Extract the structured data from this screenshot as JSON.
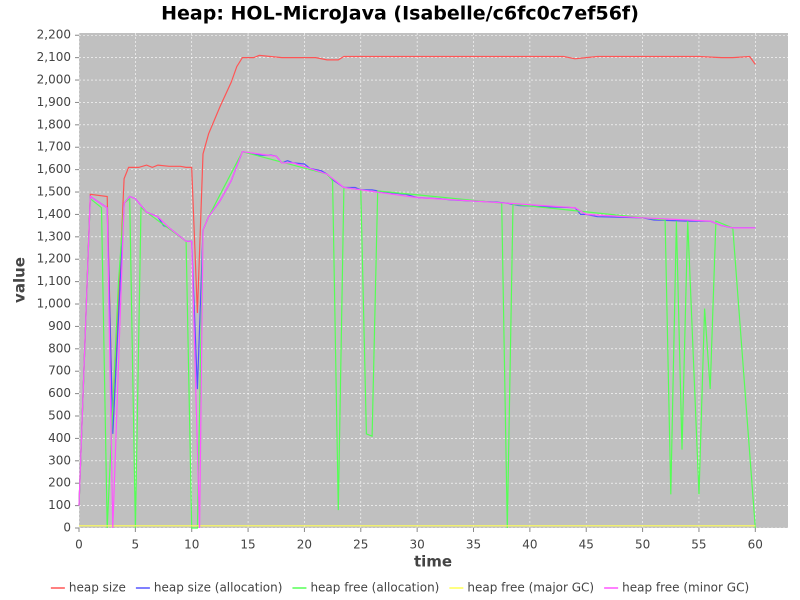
{
  "chart_data": {
    "type": "line",
    "title": "Heap: HOL-MicroJava (Isabelle/c6fc0c7ef56f)",
    "x_label": "time",
    "y_label": "value",
    "xlim": [
      0,
      62.9
    ],
    "ylim": [
      0,
      2210
    ],
    "xticks": [
      0,
      5,
      10,
      15,
      20,
      25,
      30,
      35,
      40,
      45,
      50,
      55,
      60
    ],
    "yticks": [
      0,
      100,
      200,
      300,
      400,
      500,
      600,
      700,
      800,
      900,
      {
        "value": 1000,
        "label": "1,000"
      },
      {
        "value": 1100,
        "label": "1,100"
      },
      {
        "value": 1200,
        "label": "1,200"
      },
      {
        "value": 1300,
        "label": "1,300"
      },
      {
        "value": 1400,
        "label": "1,400"
      },
      {
        "value": 1500,
        "label": "1,500"
      },
      {
        "value": 1600,
        "label": "1,600"
      },
      {
        "value": 1700,
        "label": "1,700"
      },
      {
        "value": 1800,
        "label": "1,800"
      },
      {
        "value": 1900,
        "label": "1,900"
      },
      {
        "value": 2000,
        "label": "2,000"
      },
      {
        "value": 2100,
        "label": "2,100"
      },
      {
        "value": 2200,
        "label": "2,200"
      }
    ],
    "grid": true,
    "legend": "bottom",
    "series": [
      {
        "name": "heap size",
        "color": "#ff5555",
        "x": [
          0,
          1,
          2.5,
          3,
          4,
          4.4,
          5.3,
          6,
          6.5,
          7,
          8,
          9,
          9.5,
          10,
          10.5,
          11,
          11.5,
          12.5,
          13.5,
          14,
          14.5,
          15.5,
          16,
          17,
          18,
          19,
          20,
          21,
          22,
          23,
          23.5,
          25,
          30,
          35,
          40,
          43,
          44,
          45,
          46,
          50,
          55,
          57,
          58,
          59.5,
          60
        ],
        "values": [
          100,
          1490,
          1480,
          430,
          1560,
          1610,
          1610,
          1620,
          1610,
          1620,
          1615,
          1615,
          1610,
          1610,
          960,
          1670,
          1760,
          1880,
          1990,
          2060,
          2100,
          2100,
          2110,
          2105,
          2100,
          2100,
          2100,
          2100,
          2090,
          2090,
          2105,
          2105,
          2105,
          2105,
          2105,
          2105,
          2095,
          2100,
          2105,
          2105,
          2105,
          2100,
          2100,
          2105,
          2070
        ]
      },
      {
        "name": "heap size (allocation)",
        "color": "#5555ff",
        "x": [
          0,
          1,
          2.5,
          3,
          4,
          4.5,
          5,
          6,
          6.5,
          7,
          7.5,
          8,
          9,
          9.5,
          10,
          10.5,
          11,
          11.5,
          12.5,
          13.5,
          14.5,
          15,
          16,
          17,
          17.5,
          18,
          18.5,
          19,
          20,
          20.5,
          21.5,
          22,
          22.5,
          23.5,
          24,
          24.5,
          25,
          26,
          27,
          28,
          29,
          30,
          32,
          33,
          35,
          37,
          38,
          39,
          41,
          44,
          44.5,
          45,
          46,
          50,
          51,
          54,
          56,
          57,
          58,
          60
        ],
        "values": [
          100,
          1480,
          1430,
          420,
          1450,
          1480,
          1470,
          1410,
          1400,
          1390,
          1350,
          1340,
          1300,
          1280,
          1280,
          620,
          1330,
          1390,
          1460,
          1550,
          1680,
          1675,
          1665,
          1665,
          1660,
          1630,
          1640,
          1630,
          1625,
          1605,
          1595,
          1580,
          1555,
          1520,
          1520,
          1520,
          1510,
          1510,
          1500,
          1495,
          1490,
          1475,
          1470,
          1465,
          1460,
          1455,
          1450,
          1440,
          1435,
          1430,
          1400,
          1400,
          1390,
          1385,
          1375,
          1370,
          1370,
          1350,
          1340,
          1340
        ]
      },
      {
        "name": "heap free (allocation)",
        "color": "#55ff55",
        "x": [
          0,
          1,
          2,
          2.5,
          3.5,
          4,
          4.5,
          5,
          5.5,
          6,
          9.5,
          10,
          10.5,
          11,
          11.5,
          14.5,
          22,
          22.5,
          23,
          23.5,
          25,
          25.5,
          26,
          26.5,
          37.5,
          38,
          38.5,
          52,
          52.5,
          53,
          53.5,
          54,
          55,
          55.5,
          56,
          56.5,
          58,
          60
        ],
        "values": [
          100,
          1470,
          1430,
          0,
          1100,
          1450,
          1470,
          0,
          1430,
          1410,
          1280,
          0,
          0,
          1330,
          1390,
          1680,
          1580,
          1550,
          80,
          1520,
          1510,
          420,
          410,
          1505,
          1450,
          0,
          1445,
          1375,
          150,
          1370,
          350,
          1370,
          150,
          980,
          620,
          1370,
          1340,
          0
        ]
      },
      {
        "name": "heap free (major GC)",
        "color": "#ffff55",
        "x": [
          0,
          60
        ],
        "values": [
          10,
          10
        ]
      },
      {
        "name": "heap free (minor GC)",
        "color": "#ff55ff",
        "x": [
          0,
          1,
          2.5,
          3,
          4,
          4.5,
          5,
          6,
          7,
          8,
          9,
          9.5,
          10,
          10.7,
          11,
          11.5,
          12.5,
          13.5,
          14.5,
          17.5,
          18,
          19,
          22,
          23.5,
          25,
          30,
          35,
          38,
          44,
          45,
          50,
          56,
          57,
          58,
          60
        ],
        "values": [
          100,
          1480,
          1430,
          0,
          1450,
          1480,
          1470,
          1410,
          1390,
          1340,
          1300,
          1280,
          1280,
          0,
          1330,
          1390,
          1460,
          1550,
          1680,
          1660,
          1630,
          1630,
          1580,
          1520,
          1510,
          1475,
          1460,
          1450,
          1430,
          1400,
          1385,
          1370,
          1350,
          1340,
          1340
        ]
      }
    ]
  }
}
